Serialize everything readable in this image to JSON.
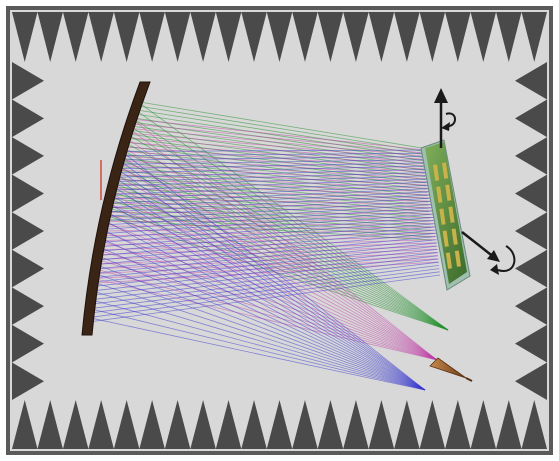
{
  "colors": {
    "frame_border": "#5a5a5a",
    "chamber_background": "#d8d8d8",
    "absorber_spikes": "#4a4a4a",
    "reflector": "#3a2416",
    "beam_green": "#1f8f2a",
    "beam_magenta": "#c23aa8",
    "beam_blue": "#3a3ad0",
    "array_panel": "#4f7f3a",
    "array_elements": "#c8b24a",
    "axis_arrows": "#1a1a1a",
    "feed_horn": "#9a5a2a"
  },
  "icons": {
    "vertical_rotation_axis": "rotation-axis-vertical-icon",
    "horizontal_rotation_axis": "rotation-axis-horizontal-icon",
    "feed_horn": "feed-horn-icon"
  }
}
